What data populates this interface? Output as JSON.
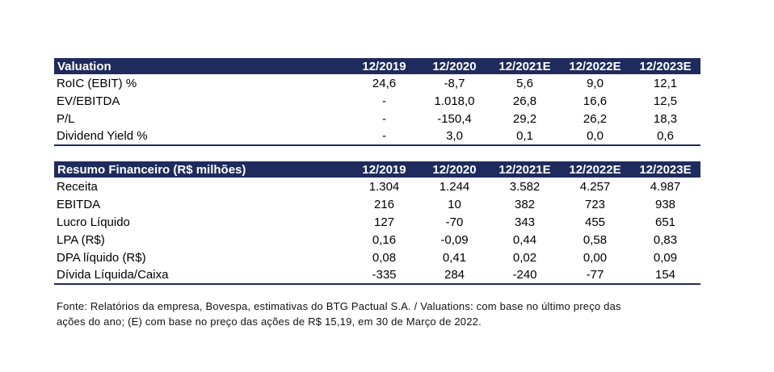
{
  "valuation": {
    "title": "Valuation",
    "years": [
      "12/2019",
      "12/2020",
      "12/2021E",
      "12/2022E",
      "12/2023E"
    ],
    "rows": [
      {
        "label": "RoIC (EBIT) %",
        "values": [
          "24,6",
          "-8,7",
          "5,6",
          "9,0",
          "12,1"
        ]
      },
      {
        "label": "EV/EBITDA",
        "values": [
          "-",
          "1.018,0",
          "26,8",
          "16,6",
          "12,5"
        ]
      },
      {
        "label": "P/L",
        "values": [
          "-",
          "-150,4",
          "29,2",
          "26,2",
          "18,3"
        ]
      },
      {
        "label": "Dividend Yield %",
        "values": [
          "-",
          "3,0",
          "0,1",
          "0,0",
          "0,6"
        ]
      }
    ]
  },
  "resumo": {
    "title": "Resumo Financeiro (R$ milhões)",
    "years": [
      "12/2019",
      "12/2020",
      "12/2021E",
      "12/2022E",
      "12/2023E"
    ],
    "rows": [
      {
        "label": "Receita",
        "values": [
          "1.304",
          "1.244",
          "3.582",
          "4.257",
          "4.987"
        ]
      },
      {
        "label": "EBITDA",
        "values": [
          "216",
          "10",
          "382",
          "723",
          "938"
        ]
      },
      {
        "label": "Lucro Líquido",
        "values": [
          "127",
          "-70",
          "343",
          "455",
          "651"
        ]
      },
      {
        "label": "LPA (R$)",
        "values": [
          "0,16",
          "-0,09",
          "0,44",
          "0,58",
          "0,83"
        ]
      },
      {
        "label": "DPA líquido (R$)",
        "values": [
          "0,08",
          "0,41",
          "0,02",
          "0,00",
          "0,09"
        ]
      },
      {
        "label": "Dívida Líquida/Caixa",
        "values": [
          "-335",
          "284",
          "-240",
          "-77",
          "154"
        ]
      }
    ]
  },
  "footnote": {
    "line1": "Fonte: Relatórios da empresa, Bovespa, estimativas do BTG Pactual S.A. / Valuations: com base no último preço das",
    "line2": "ações do ano; (E) com base no preço das ações de R$ 15,19, em 30 de Março de 2022."
  }
}
